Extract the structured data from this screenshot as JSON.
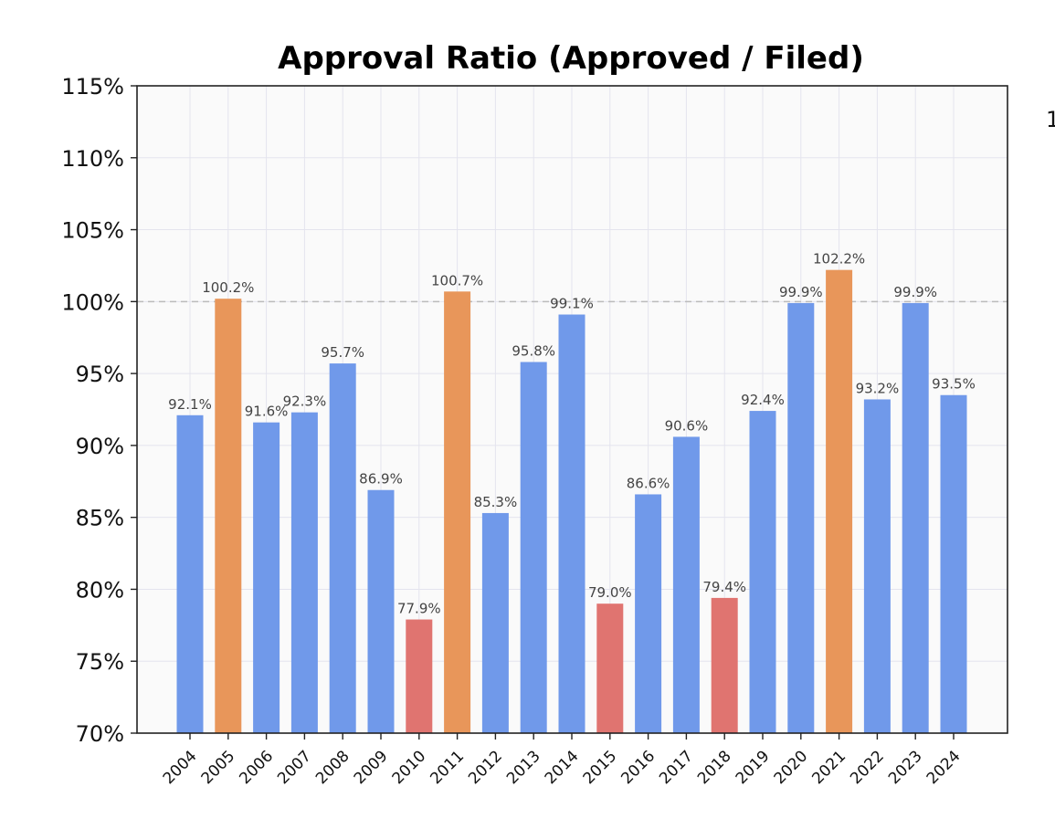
{
  "chart_data": {
    "type": "bar",
    "title": "Approval Ratio (Approved / Filed)",
    "xlabel": "",
    "ylabel": "",
    "ylim": [
      70,
      115
    ],
    "yticks": [
      70,
      75,
      80,
      85,
      90,
      95,
      100,
      105,
      110,
      115
    ],
    "ytick_labels": [
      "70%",
      "75%",
      "80%",
      "85%",
      "90%",
      "95%",
      "100%",
      "105%",
      "110%",
      "115%"
    ],
    "reference_line": 100,
    "grid": true,
    "categories": [
      "2004",
      "2005",
      "2006",
      "2007",
      "2008",
      "2009",
      "2010",
      "2011",
      "2012",
      "2013",
      "2014",
      "2015",
      "2016",
      "2017",
      "2018",
      "2019",
      "2020",
      "2021",
      "2022",
      "2023",
      "2024"
    ],
    "values": [
      92.1,
      100.2,
      91.6,
      92.3,
      95.7,
      86.9,
      77.9,
      100.7,
      85.3,
      95.8,
      99.1,
      79.0,
      86.6,
      90.6,
      79.4,
      92.4,
      99.9,
      102.2,
      93.2,
      99.9,
      93.5
    ],
    "value_labels": [
      "92.1%",
      "100.2%",
      "91.6%",
      "92.3%",
      "95.7%",
      "86.9%",
      "77.9%",
      "100.7%",
      "85.3%",
      "95.8%",
      "99.1%",
      "79.0%",
      "86.6%",
      "90.6%",
      "79.4%",
      "92.4%",
      "99.9%",
      "102.2%",
      "93.2%",
      "99.9%",
      "93.5%"
    ],
    "colors": {
      "normal": "#7099ea",
      "above_100": "#e8965a",
      "below_80": "#e07470",
      "reference_line": "#bbbbbb",
      "grid": "#e4e4ee",
      "plot_background": "#fafafa"
    }
  },
  "edge_fragment": "1"
}
